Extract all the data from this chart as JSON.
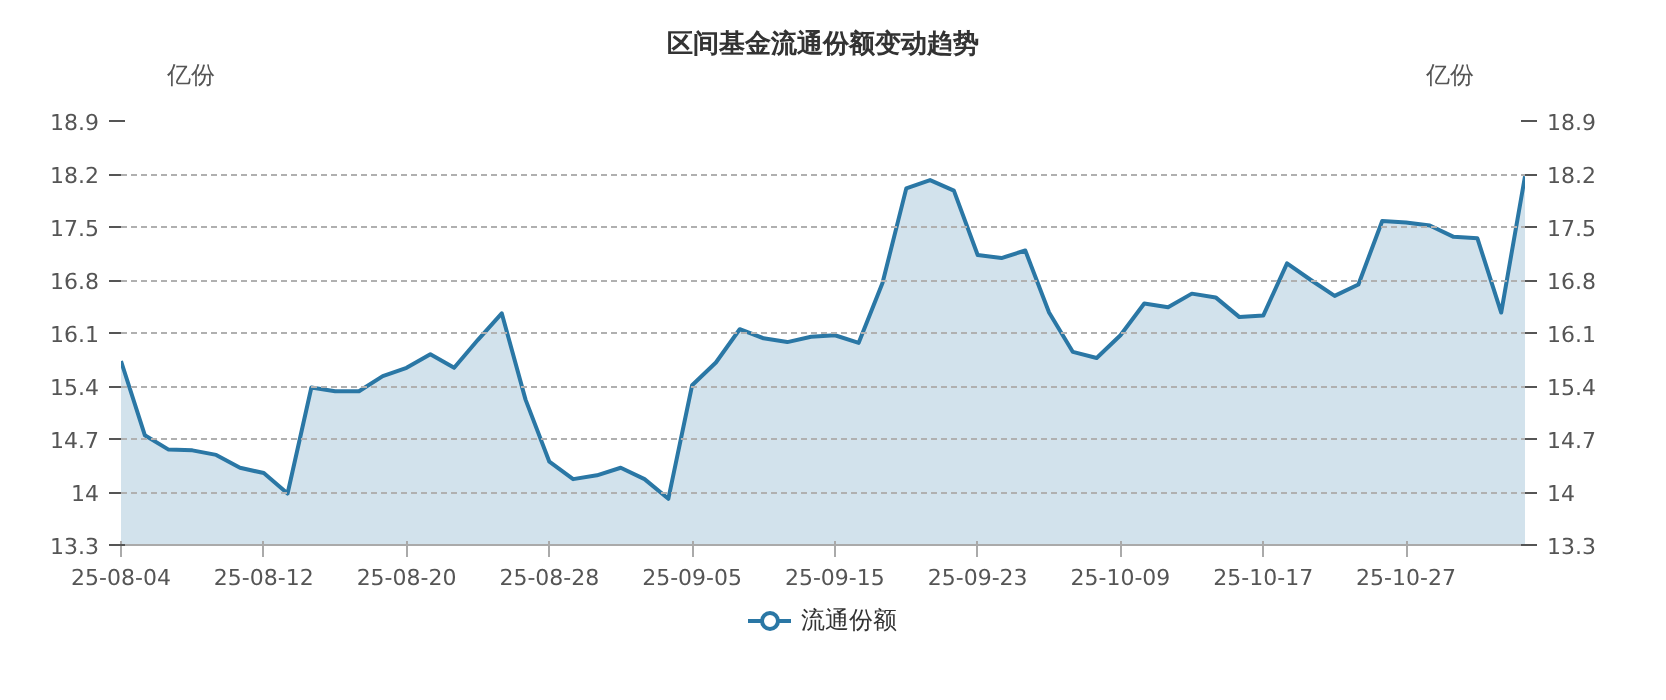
{
  "chart_data": {
    "type": "area",
    "title": "区间基金流通份额变动趋势",
    "ylabel": "亿份",
    "y2label": "亿份",
    "categories": [
      "25-08-04",
      null,
      null,
      null,
      null,
      null,
      "25-08-12",
      null,
      null,
      null,
      null,
      null,
      "25-08-20",
      null,
      null,
      null,
      null,
      null,
      "25-08-28",
      null,
      null,
      null,
      null,
      null,
      "25-09-05",
      null,
      null,
      null,
      null,
      null,
      "25-09-15",
      null,
      null,
      null,
      null,
      null,
      "25-09-23",
      null,
      null,
      null,
      null,
      null,
      "25-10-09",
      null,
      null,
      null,
      null,
      null,
      "25-10-17",
      null,
      null,
      null,
      null,
      null,
      "25-10-27",
      null,
      null,
      null,
      null,
      null
    ],
    "series": [
      {
        "name": "流通份额",
        "color": "#2a77a5",
        "values": [
          15.73,
          14.75,
          14.56,
          14.55,
          14.49,
          14.32,
          14.25,
          13.98,
          15.38,
          15.33,
          15.33,
          15.53,
          15.64,
          15.82,
          15.64,
          16.01,
          16.36,
          15.22,
          14.4,
          14.17,
          14.22,
          14.32,
          14.17,
          13.91,
          15.41,
          15.71,
          16.15,
          16.03,
          15.98,
          16.05,
          16.07,
          15.97,
          16.76,
          18.01,
          18.12,
          17.98,
          17.13,
          17.09,
          17.19,
          16.37,
          15.85,
          15.77,
          16.07,
          16.49,
          16.44,
          16.62,
          16.57,
          16.31,
          16.33,
          17.02,
          16.8,
          16.59,
          16.74,
          17.58,
          17.56,
          17.52,
          17.37,
          17.35,
          16.37,
          18.17
        ]
      }
    ],
    "ylim": [
      13.3,
      18.9
    ],
    "yticks": [
      13.3,
      14,
      14.7,
      15.4,
      16.1,
      16.8,
      17.5,
      18.2,
      18.9
    ],
    "y2lim": [
      13.3,
      18.9
    ],
    "y2ticks": [
      13.3,
      14,
      14.7,
      15.4,
      16.1,
      16.8,
      17.5,
      18.2,
      18.9
    ],
    "grid": "y",
    "legend": "bottom"
  }
}
